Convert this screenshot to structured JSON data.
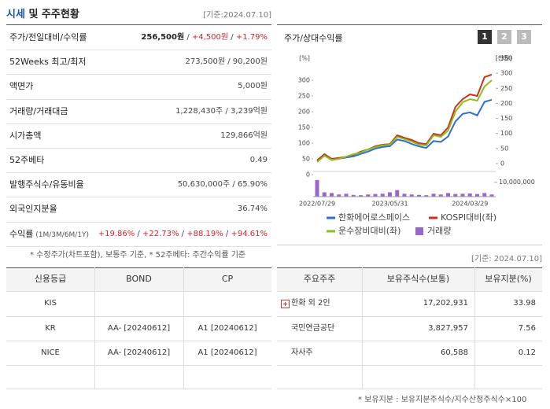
{
  "left_title": {
    "highlight": "시세",
    "rest": " 및 주주현황",
    "date": "[기준:2024.07.10]"
  },
  "quote_table": {
    "rows": [
      {
        "label": [
          "주가/전일대비/수익률"
        ],
        "value": [
          "256,500원",
          " / ",
          "+4,500원",
          " / ",
          "+1.79%"
        ]
      },
      {
        "label": [
          "52Weeks 최고/최저"
        ],
        "value": [
          "273,500원 / 90,200원"
        ]
      },
      {
        "label": [
          "액면가"
        ],
        "value": [
          "5,000원"
        ]
      },
      {
        "label": [
          "거래량/거래대금"
        ],
        "value": [
          "1,228,430주 / 3,239억원"
        ]
      },
      {
        "label": [
          "시가총액"
        ],
        "value": [
          "129,866억원"
        ]
      },
      {
        "label": [
          "52주베타"
        ],
        "value": [
          "0.49"
        ]
      },
      {
        "label": [
          "발행주식수/유동비율"
        ],
        "value": [
          "50,630,000주 / 65.90%"
        ]
      },
      {
        "label": [
          "외국인지분율"
        ],
        "value": [
          "36.74%"
        ]
      },
      {
        "label": [
          "수익률",
          " (1M/3M/6M/1Y)"
        ],
        "value": [
          "+19.86%",
          " / ",
          "+22.73%",
          " / ",
          "+88.19%",
          " / ",
          "+94.61%"
        ]
      }
    ]
  },
  "quote_note": "* 수정주가(차트포함), 보통주 기준, * 52주베타: 주간수익률 기준",
  "chart": {
    "type": "line",
    "title": "주가/상대수익률",
    "pages": [
      "1",
      "2",
      "3"
    ],
    "y_unit": "[%]",
    "y2_unit": "[천원]",
    "categories": [
      "2022/07/29",
      null,
      null,
      null,
      null,
      null,
      null,
      null,
      null,
      null,
      "2023/05/31",
      null,
      null,
      null,
      null,
      null,
      null,
      null,
      null,
      null,
      null,
      "2024/03/29",
      null,
      null,
      null
    ],
    "series": [
      {
        "name": "한화에어로스페이스",
        "color": "#2e6fd1",
        "axis": "y2",
        "values": [
          10,
          30,
          12,
          16,
          20,
          24,
          32,
          40,
          50,
          55,
          58,
          80,
          75,
          65,
          57,
          52,
          75,
          72,
          90,
          140,
          165,
          170,
          160,
          205,
          212
        ]
      },
      {
        "name": "KOSPI대비(좌)",
        "color": "#c8321e",
        "values": [
          10,
          30,
          15,
          18,
          22,
          28,
          38,
          45,
          55,
          60,
          62,
          90,
          82,
          75,
          65,
          62,
          95,
          90,
          115,
          180,
          205,
          220,
          215,
          275,
          283
        ]
      },
      {
        "name": "운수장비대비(좌)",
        "color": "#8cbf1e",
        "values": [
          5,
          25,
          12,
          15,
          22,
          30,
          35,
          45,
          52,
          58,
          60,
          85,
          78,
          70,
          60,
          58,
          90,
          85,
          105,
          165,
          195,
          205,
          200,
          245,
          265
        ]
      }
    ],
    "ylim": [
      0,
      335
    ],
    "yticks": [
      0,
      50,
      100,
      150,
      200,
      250,
      300
    ],
    "y2lim": [
      0,
      350
    ],
    "y2ticks": [
      0,
      50,
      100,
      150,
      200,
      250,
      300,
      350
    ],
    "volume": {
      "name": "거래량",
      "color": "#9966cc",
      "lim": [
        0,
        12000000
      ],
      "ticks": [
        {
          "value": 10000000,
          "label": "10,000,000"
        }
      ],
      "values": [
        11500000,
        3000000,
        2500000,
        1500000,
        2000000,
        1200000,
        1000000,
        1500000,
        1800000,
        2000000,
        3000000,
        4500000,
        2000000,
        1500000,
        1200000,
        1000000,
        2000000,
        1500000,
        2500000,
        1800000,
        2000000,
        2200000,
        1800000,
        2500000,
        1500000
      ]
    }
  },
  "rating_table": {
    "header": [
      "신용등급",
      "BOND",
      "CP"
    ],
    "rows": [
      [
        "KIS"
      ],
      [
        "KR",
        "AA- [20240612]",
        "A1 [20240612]"
      ],
      [
        "NICE",
        "AA- [20240612]",
        "A1 [20240612]"
      ]
    ]
  },
  "holder_date": "[기준: 2024.07.10]",
  "holder_table": {
    "header": [
      "주요주주",
      "보유주식수(보통)",
      "보유지분(%)"
    ],
    "rows": [
      [
        "한화 외 2인",
        "17,202,931",
        "33.98"
      ],
      [
        "국민연금공단",
        "3,827,957",
        "7.56"
      ],
      [
        "자사주",
        "60,588",
        "0.12"
      ]
    ]
  },
  "holder_note": "* 보유지분 : 보유지분주식수/지수산정주식수×100"
}
